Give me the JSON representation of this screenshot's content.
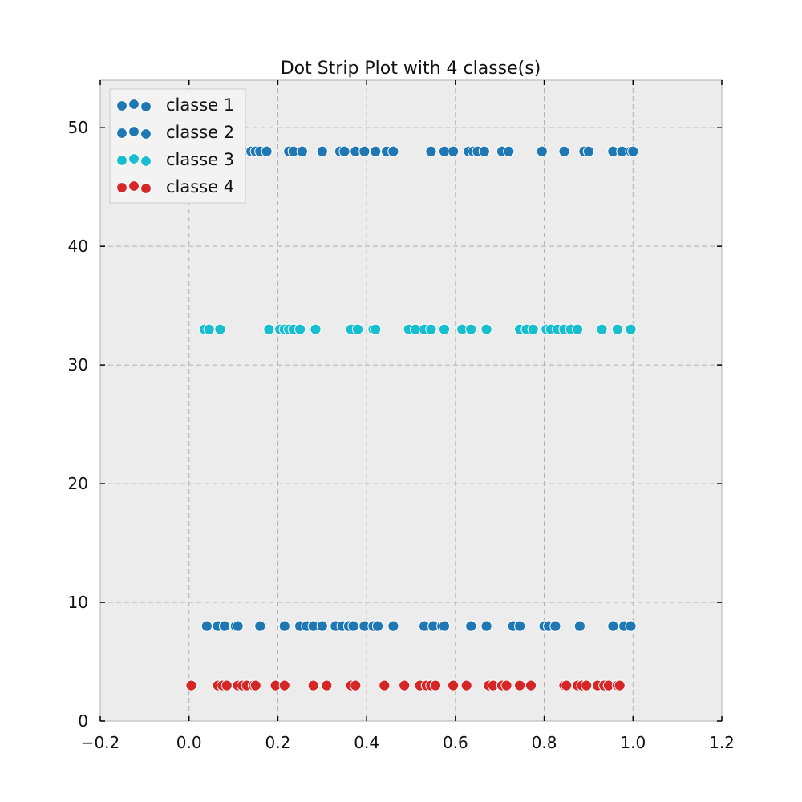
{
  "chart_data": {
    "type": "scatter",
    "title": "Dot Strip Plot with 4 classe(s)",
    "xlabel": "",
    "ylabel": "",
    "xlim": [
      -0.2,
      1.2
    ],
    "ylim": [
      0,
      54
    ],
    "xticks": [
      -0.2,
      0.0,
      0.2,
      0.4,
      0.6,
      0.8,
      1.0,
      1.2
    ],
    "xtick_labels": [
      "−0.2",
      "0.0",
      "0.2",
      "0.4",
      "0.6",
      "0.8",
      "1.0",
      "1.2"
    ],
    "yticks": [
      0,
      10,
      20,
      30,
      40,
      50
    ],
    "ytick_labels": [
      "0",
      "10",
      "20",
      "30",
      "40",
      "50"
    ],
    "grid": true,
    "legend_position": "top-left",
    "series": [
      {
        "name": "classe 1",
        "color": "#1f77b4",
        "y": 48,
        "x": [
          0.02,
          0.04,
          0.06,
          0.08,
          0.1,
          0.12,
          0.14,
          0.15,
          0.16,
          0.175,
          0.225,
          0.235,
          0.255,
          0.3,
          0.34,
          0.35,
          0.375,
          0.395,
          0.42,
          0.445,
          0.46,
          0.545,
          0.575,
          0.595,
          0.63,
          0.64,
          0.65,
          0.665,
          0.705,
          0.72,
          0.795,
          0.845,
          0.89,
          0.9,
          0.955,
          0.975,
          0.995,
          1.0
        ]
      },
      {
        "name": "classe 2",
        "color": "#1f77b4",
        "y": 8,
        "x": [
          0.04,
          0.065,
          0.08,
          0.105,
          0.11,
          0.16,
          0.215,
          0.25,
          0.265,
          0.28,
          0.3,
          0.33,
          0.345,
          0.36,
          0.37,
          0.395,
          0.415,
          0.425,
          0.46,
          0.53,
          0.55,
          0.57,
          0.575,
          0.635,
          0.67,
          0.73,
          0.745,
          0.8,
          0.81,
          0.825,
          0.88,
          0.955,
          0.98,
          0.995
        ]
      },
      {
        "name": "classe 3",
        "color": "#17becf",
        "y": 33,
        "x": [
          0.035,
          0.045,
          0.07,
          0.18,
          0.205,
          0.215,
          0.225,
          0.235,
          0.25,
          0.285,
          0.365,
          0.38,
          0.415,
          0.42,
          0.495,
          0.51,
          0.53,
          0.545,
          0.575,
          0.615,
          0.635,
          0.67,
          0.745,
          0.76,
          0.775,
          0.805,
          0.815,
          0.83,
          0.845,
          0.86,
          0.875,
          0.93,
          0.965,
          0.995
        ]
      },
      {
        "name": "classe 4",
        "color": "#d62728",
        "y": 3,
        "x": [
          0.005,
          0.065,
          0.075,
          0.085,
          0.11,
          0.12,
          0.13,
          0.145,
          0.15,
          0.195,
          0.215,
          0.28,
          0.31,
          0.365,
          0.375,
          0.44,
          0.485,
          0.52,
          0.535,
          0.545,
          0.555,
          0.595,
          0.625,
          0.675,
          0.685,
          0.705,
          0.715,
          0.745,
          0.77,
          0.845,
          0.85,
          0.875,
          0.885,
          0.895,
          0.92,
          0.935,
          0.945,
          0.965,
          0.97
        ]
      }
    ]
  }
}
